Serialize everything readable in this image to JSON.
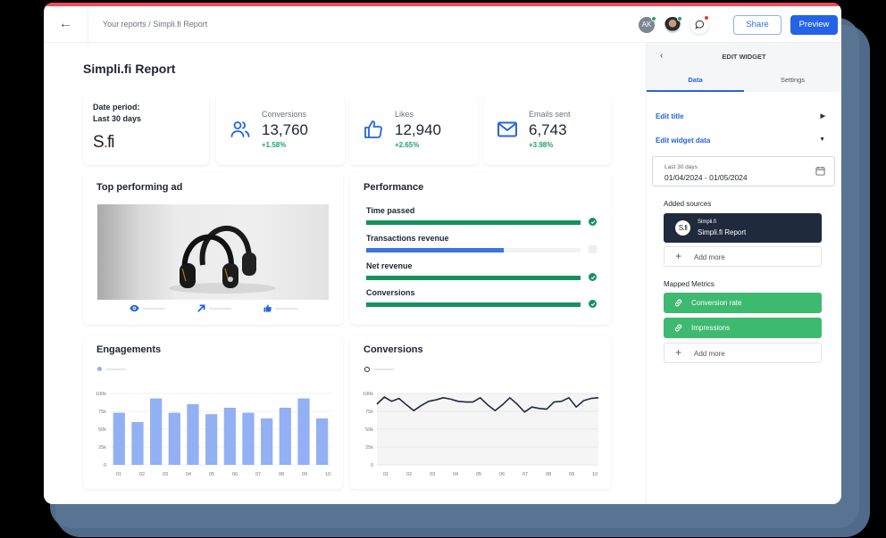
{
  "topbar": {
    "back_icon": "←",
    "breadcrumb": "Your reports / Simpli.fi Report",
    "avatar_initials": "AK",
    "share_label": "Share",
    "preview_label": "Preview",
    "colors": {
      "stripe": "#ef4b5a",
      "primary": "#2563e6",
      "online": "#21a366",
      "notify": "#e53935"
    }
  },
  "page": {
    "title": "Simpli.fi Report"
  },
  "kpis": {
    "date": {
      "label1": "Date period:",
      "label2": "Last 30 days",
      "logo_s": "S",
      "logo_dot": ".",
      "logo_fi": "fi"
    },
    "items": [
      {
        "label": "Conversions",
        "value": "13,760",
        "change": "+1.58%",
        "icon": "users-icon"
      },
      {
        "label": "Likes",
        "value": "12,940",
        "change": "+2.65%",
        "icon": "thumbs-up-icon"
      },
      {
        "label": "Emails sent",
        "value": "6,743",
        "change": "+3.98%",
        "icon": "mail-icon"
      }
    ]
  },
  "ad": {
    "title": "Top performing ad",
    "metrics": [
      "eye-icon",
      "share-arrow-icon",
      "like-icon"
    ]
  },
  "performance": {
    "title": "Performance",
    "rows": [
      {
        "name": "Time passed",
        "percent": 100,
        "color": "#14925e",
        "status": "complete"
      },
      {
        "name": "Transactions revenue",
        "percent": 64,
        "color": "#3b74e0",
        "status": "pending"
      },
      {
        "name": "Net revenue",
        "percent": 100,
        "color": "#14925e",
        "status": "complete"
      },
      {
        "name": "Conversions",
        "percent": 100,
        "color": "#14925e",
        "status": "complete"
      }
    ]
  },
  "engagements": {
    "title": "Engagements"
  },
  "conversions": {
    "title": "Conversions"
  },
  "chart_data": [
    {
      "type": "bar",
      "title": "Engagements",
      "categories": [
        "01",
        "02",
        "03",
        "04",
        "05",
        "06",
        "07",
        "08",
        "09",
        "10"
      ],
      "values": [
        73,
        60,
        93,
        73,
        85,
        71,
        80,
        73,
        65,
        80,
        93,
        65
      ],
      "bar_labels_note": "12 bars drawn across 10 tick labels",
      "yticks": [
        "0",
        "25k",
        "50k",
        "75k",
        "100k"
      ],
      "ylim": [
        0,
        100
      ],
      "color": "#92b0f3",
      "grid": true
    },
    {
      "type": "line",
      "title": "Conversions",
      "categories": [
        "01",
        "02",
        "03",
        "04",
        "05",
        "06",
        "07",
        "08",
        "09",
        "10"
      ],
      "values": [
        85,
        95,
        89,
        93,
        84,
        76,
        83,
        89,
        91,
        94,
        92,
        89,
        88,
        88,
        94,
        84,
        76,
        84,
        94,
        85,
        74,
        81,
        79,
        78,
        88,
        89,
        94,
        81,
        90,
        93,
        94
      ],
      "yticks": [
        "0",
        "25k",
        "50k",
        "75k",
        "100k"
      ],
      "ylim": [
        0,
        100
      ],
      "color": "#1f2a3d",
      "grid": true
    }
  ],
  "panel": {
    "back_icon": "‹",
    "title": "EDIT WIDGET",
    "tabs": [
      {
        "label": "Data",
        "active": true
      },
      {
        "label": "Settings",
        "active": false
      }
    ],
    "edit_title": "Edit title",
    "edit_data": "Edit widget data",
    "date_small": "Last 30 days",
    "date_range": "01/04/2024 - 01/05/2024",
    "sources_label": "Added sources",
    "source": {
      "line1": "Simpli.fi",
      "line2": "Simpli.fi Report",
      "logo": "S.fi"
    },
    "add_more": "Add more",
    "mapped_label": "Mapped Metrics",
    "metrics": [
      "Conversion rate",
      "Impressions"
    ],
    "add_more_2": "Add more"
  }
}
